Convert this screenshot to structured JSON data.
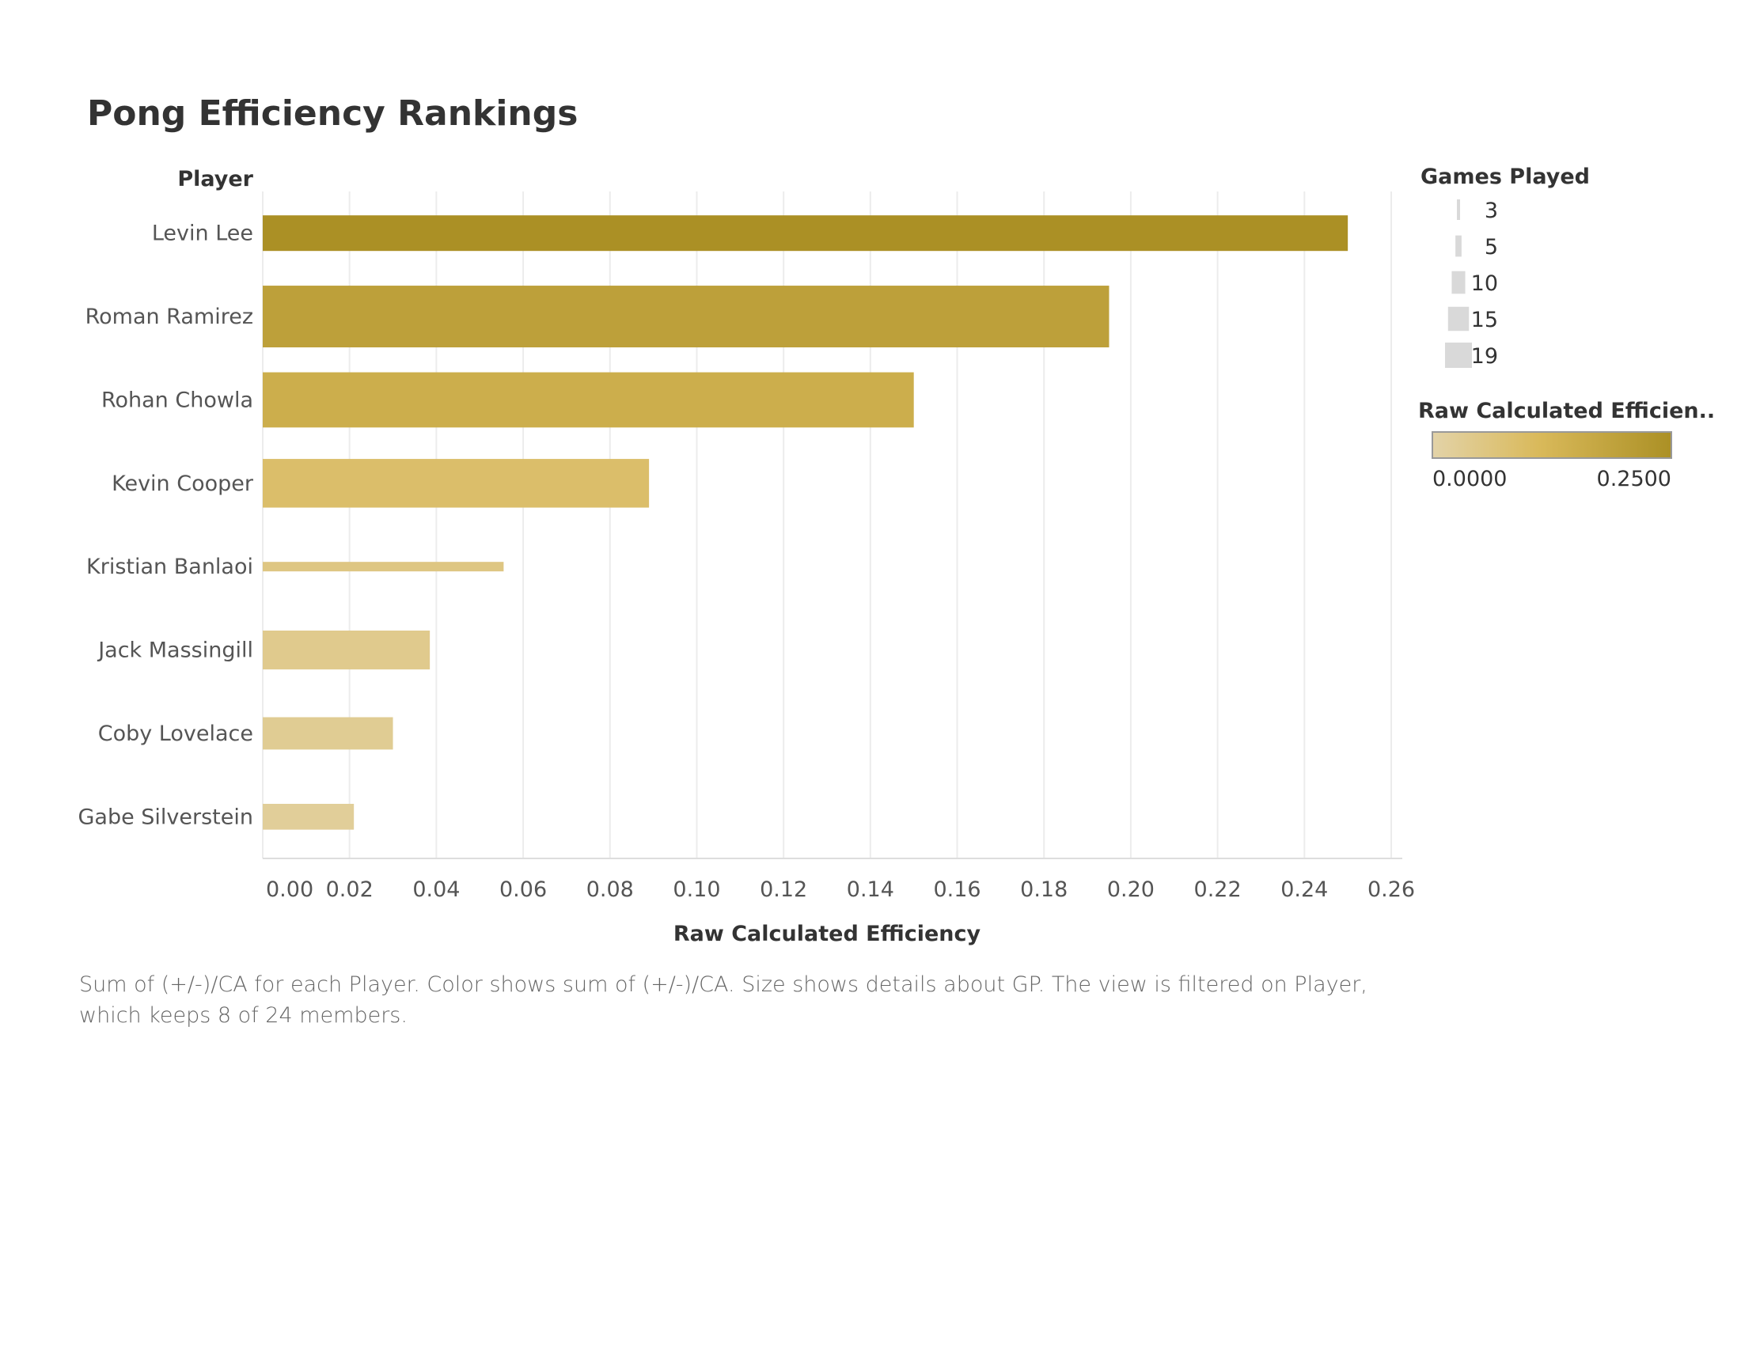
{
  "title": "Pong Efficiency Rankings",
  "row_header": "Player",
  "caption": "Sum of (+/-)/CA for each Player.  Color shows sum of (+/-)/CA.  Size shows details about GP. The view is filtered on Player, which keeps 8 of 24 members.",
  "chart_data": {
    "type": "bar",
    "orientation": "horizontal",
    "categories": [
      "Levin Lee",
      "Roman Ramirez",
      "Rohan Chowla",
      "Kevin Cooper",
      "Kristian Banlaoi",
      "Jack Massingill",
      "Coby Lovelace",
      "Gabe Silverstein"
    ],
    "values": [
      0.25,
      0.195,
      0.15,
      0.089,
      0.0555,
      0.0385,
      0.03,
      0.021
    ],
    "games_played": [
      11,
      19,
      17,
      15,
      3,
      12,
      10,
      8
    ],
    "xlabel": "Raw Calculated Efficiency",
    "xlim": [
      0,
      0.26
    ],
    "xticks": [
      "0.00",
      "0.02",
      "0.04",
      "0.06",
      "0.08",
      "0.10",
      "0.12",
      "0.14",
      "0.16",
      "0.18",
      "0.20",
      "0.22",
      "0.24",
      "0.26"
    ],
    "grid": true,
    "color_scale": {
      "min": 0.0,
      "max": 0.25,
      "min_color": "#e3d3a8",
      "mid_color": "#d9b95a",
      "max_color": "#ab9025"
    },
    "legend_size": {
      "title": "Games Played",
      "values": [
        3,
        5,
        10,
        15,
        19
      ],
      "labels": [
        "3",
        "5",
        "10",
        "15",
        "19"
      ]
    },
    "legend_color": {
      "title": "Raw Calculated Efficien..",
      "min_label": "0.0000",
      "max_label": "0.2500"
    },
    "legend_placement": "right"
  }
}
